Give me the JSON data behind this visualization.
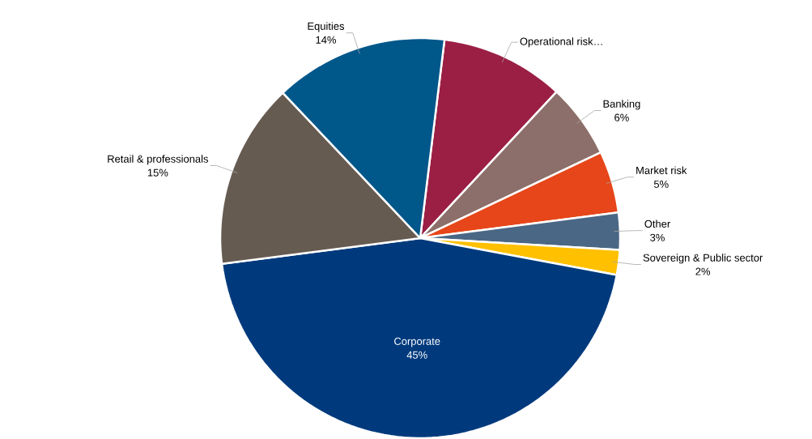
{
  "chart_data": {
    "type": "pie",
    "categories": [
      "Operational risk…",
      "Banking",
      "Market risk",
      "Other",
      "Sovereign & Public sector",
      "Corporate",
      "Retail & professionals",
      "Equities"
    ],
    "values": [
      10,
      6,
      5,
      3,
      2,
      45,
      15,
      14
    ],
    "value_labels": [
      null,
      "6%",
      "5%",
      "3%",
      "2%",
      "45%",
      "15%",
      "14%"
    ],
    "colors": [
      "#9b1f45",
      "#8c6f6a",
      "#e64619",
      "#4a6785",
      "#ffc000",
      "#003a7d",
      "#665b51",
      "#00578a"
    ]
  }
}
